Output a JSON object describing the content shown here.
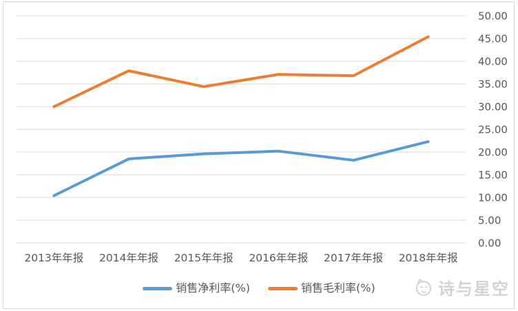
{
  "chart_data": {
    "type": "line",
    "categories": [
      "2013年年报",
      "2014年年报",
      "2015年年报",
      "2016年年报",
      "2017年年报",
      "2018年年报"
    ],
    "series": [
      {
        "name": "销售净利率(%)",
        "color": "#5B9BD5",
        "values": [
          10.4,
          18.5,
          19.6,
          20.2,
          18.2,
          22.3
        ]
      },
      {
        "name": "销售毛利率(%)",
        "color": "#ED7D31",
        "values": [
          30.0,
          37.9,
          34.4,
          37.1,
          36.8,
          45.4
        ]
      }
    ],
    "title": "",
    "xlabel": "",
    "ylabel": "",
    "ylim": [
      0,
      50
    ],
    "ytick_step": 5,
    "ytick_labels": [
      "0.00",
      "5.00",
      "10.00",
      "15.00",
      "20.00",
      "25.00",
      "30.00",
      "35.00",
      "40.00",
      "45.00",
      "50.00"
    ],
    "grid": "horizontal",
    "yaxis_side": "right",
    "legend_position": "bottom-center"
  },
  "colors": {
    "gridline": "#d9d9d9",
    "axis_text": "#595959",
    "background": "#ffffff",
    "frame_border": "#d9d9d9",
    "watermark": "#d5d3d1",
    "series_blue": "#5B9BD5",
    "series_orange": "#ED7D31"
  },
  "watermark": {
    "text": "诗与星空"
  }
}
